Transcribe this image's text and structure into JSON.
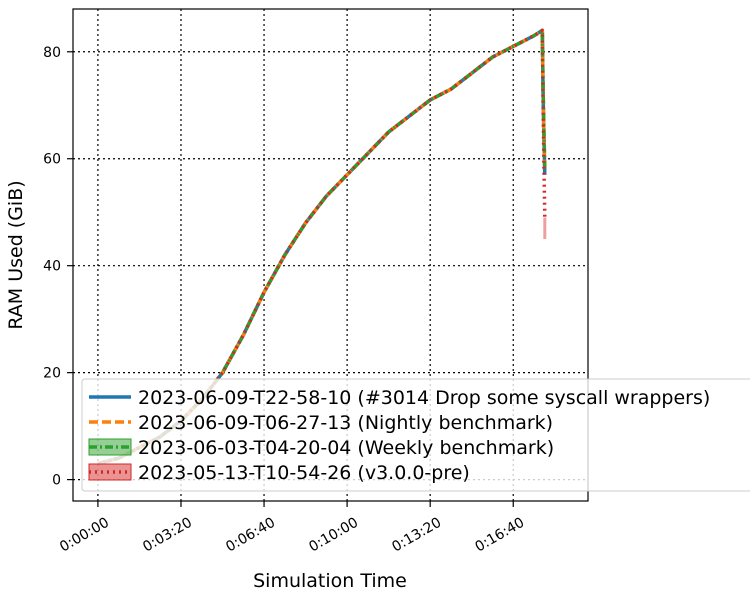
{
  "chart_data": {
    "type": "line",
    "title": "",
    "xlabel": "Simulation Time",
    "ylabel": "RAM Used (GiB)",
    "x_unit": "seconds",
    "xlim": [
      -60,
      1180
    ],
    "ylim": [
      -4,
      88
    ],
    "x_ticks": [
      {
        "value": 0,
        "label": "0:00:00"
      },
      {
        "value": 200,
        "label": "0:03:20"
      },
      {
        "value": 400,
        "label": "0:06:40"
      },
      {
        "value": 600,
        "label": "0:10:00"
      },
      {
        "value": 800,
        "label": "0:13:20"
      },
      {
        "value": 1000,
        "label": "0:16:40"
      }
    ],
    "y_ticks": [
      {
        "value": 0,
        "label": "0"
      },
      {
        "value": 20,
        "label": "20"
      },
      {
        "value": 40,
        "label": "40"
      },
      {
        "value": 60,
        "label": "60"
      },
      {
        "value": 80,
        "label": "80"
      }
    ],
    "grid": true,
    "legend_position": "lower-left",
    "series": [
      {
        "name": "2023-06-09-T22-58-10 (#3014 Drop some syscall wrappers)",
        "color": "#1f77b4",
        "style": "solid",
        "x": [
          0,
          50,
          100,
          150,
          200,
          250,
          300,
          350,
          400,
          450,
          500,
          550,
          600,
          650,
          700,
          750,
          800,
          850,
          900,
          950,
          1000,
          1050,
          1070,
          1072,
          1074,
          1076
        ],
        "y": [
          3,
          4,
          6,
          8,
          11,
          15,
          20,
          27,
          35,
          42,
          48,
          53,
          57,
          61,
          65,
          68,
          71,
          73,
          76,
          79,
          81,
          83,
          84,
          72,
          63,
          57
        ]
      },
      {
        "name": "2023-06-09-T06-27-13 (Nightly benchmark)",
        "color": "#ff7f0e",
        "style": "dashed",
        "x": [
          0,
          50,
          100,
          150,
          200,
          250,
          300,
          350,
          400,
          450,
          500,
          550,
          600,
          650,
          700,
          750,
          800,
          850,
          900,
          950,
          1000,
          1050,
          1070,
          1072,
          1074,
          1076
        ],
        "y": [
          3,
          4,
          6,
          8,
          11,
          15,
          20,
          27,
          35,
          42,
          48,
          53,
          57,
          61,
          65,
          68,
          71,
          73,
          76,
          79,
          81,
          83,
          84,
          73,
          64,
          58
        ]
      },
      {
        "name": "2023-06-03-T04-20-04 (Weekly benchmark)",
        "color": "#2ca02c",
        "style": "dashdot",
        "band": true,
        "x": [
          0,
          50,
          100,
          150,
          200,
          250,
          300,
          350,
          400,
          450,
          500,
          550,
          600,
          650,
          700,
          750,
          800,
          850,
          900,
          950,
          1000,
          1050,
          1070,
          1072,
          1074,
          1076
        ],
        "y": [
          3,
          4,
          6,
          8,
          11,
          15,
          20,
          27,
          35,
          42,
          48,
          53,
          57,
          61,
          65,
          68,
          71,
          73,
          76,
          79,
          81,
          83,
          84,
          73,
          65,
          58
        ]
      },
      {
        "name": "2023-05-13-T10-54-26 (v3.0.0-pre)",
        "color": "#d62728",
        "style": "dotted",
        "band": true,
        "x": [
          0,
          50,
          100,
          150,
          200,
          250,
          300,
          350,
          400,
          450,
          500,
          550,
          600,
          650,
          700,
          750,
          800,
          850,
          900,
          950,
          1000,
          1050,
          1070,
          1072,
          1074,
          1076
        ],
        "y": [
          3,
          4,
          6,
          8,
          11,
          15,
          20,
          27,
          35,
          42,
          48,
          53,
          57,
          61,
          65,
          68,
          71,
          73,
          76,
          79,
          81,
          83,
          84,
          70,
          58,
          49
        ],
        "band_low_end": 45
      }
    ]
  }
}
